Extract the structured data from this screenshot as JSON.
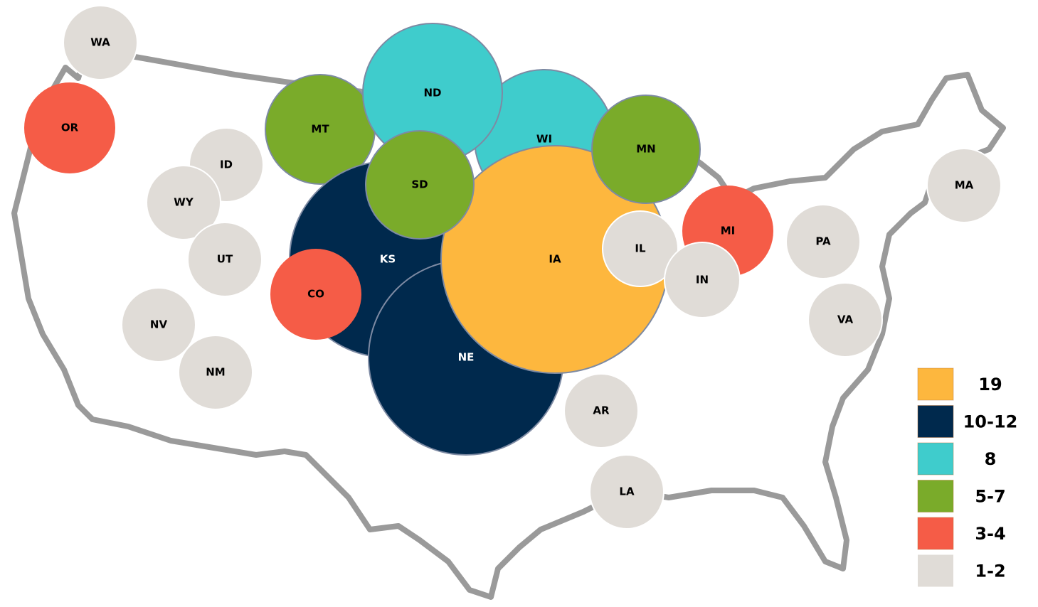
{
  "bubbles": [
    {
      "label": "WA",
      "color": "#E0DCD7"
    },
    {
      "label": "OR",
      "color": "#F55C47"
    },
    {
      "label": "ID",
      "color": "#E0DCD7"
    },
    {
      "label": "WY",
      "color": "#E0DCD7"
    },
    {
      "label": "UT",
      "color": "#E0DCD7"
    },
    {
      "label": "NV",
      "color": "#E0DCD7"
    },
    {
      "label": "NM",
      "color": "#E0DCD7"
    },
    {
      "label": "MT",
      "color": "#7AAB2A"
    },
    {
      "label": "WI",
      "color": "#3FCCCC"
    },
    {
      "label": "ND",
      "color": "#3FCCCC"
    },
    {
      "label": "KS",
      "color": "#00294D"
    },
    {
      "label": "NE",
      "color": "#00294D"
    },
    {
      "label": "IA",
      "color": "#FDB73E"
    },
    {
      "label": "SD",
      "color": "#7AAB2A"
    },
    {
      "label": "MN",
      "color": "#7AAB2A"
    },
    {
      "label": "CO",
      "color": "#F55C47"
    },
    {
      "label": "MI",
      "color": "#F55C47"
    },
    {
      "label": "IL",
      "color": "#E0DCD7"
    },
    {
      "label": "IN",
      "color": "#E0DCD7"
    },
    {
      "label": "PA",
      "color": "#E0DCD7"
    },
    {
      "label": "MA",
      "color": "#E0DCD7"
    },
    {
      "label": "VA",
      "color": "#E0DCD7"
    },
    {
      "label": "AR",
      "color": "#E0DCD7"
    },
    {
      "label": "LA",
      "color": "#E0DCD7"
    }
  ],
  "legend": [
    {
      "label": "19",
      "color": "#FDB73E"
    },
    {
      "label": "10-12",
      "color": "#00294D"
    },
    {
      "label": "8",
      "color": "#3FCCCC"
    },
    {
      "label": "5-7",
      "color": "#7AAB2A"
    },
    {
      "label": "3-4",
      "color": "#F55C47"
    },
    {
      "label": "1-2",
      "color": "#E0DCD7"
    }
  ]
}
